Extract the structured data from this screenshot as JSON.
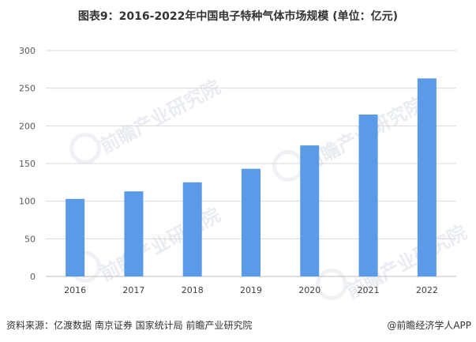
{
  "title": "图表9：2016-2022年中国电子特种气体市场规模 (单位：亿元)",
  "footer": {
    "source": "资料来源：亿渡数据 南京证券 国家统计局 前瞻产业研究院",
    "brand": "@前瞻经济学人APP"
  },
  "watermark_text": "前瞻产业研究院",
  "colors": {
    "bar": "#5b9ae6",
    "grid": "#d9d9d9",
    "axis": "#bfbfbf"
  },
  "chart_data": {
    "type": "bar",
    "categories": [
      "2016",
      "2017",
      "2018",
      "2019",
      "2020",
      "2021",
      "2022"
    ],
    "values": [
      103,
      113,
      125,
      143,
      174,
      215,
      263
    ],
    "ylim": [
      0,
      300
    ],
    "yticks": [
      0,
      50,
      100,
      150,
      200,
      250,
      300
    ],
    "grid": true,
    "xlabel": "",
    "ylabel": ""
  }
}
